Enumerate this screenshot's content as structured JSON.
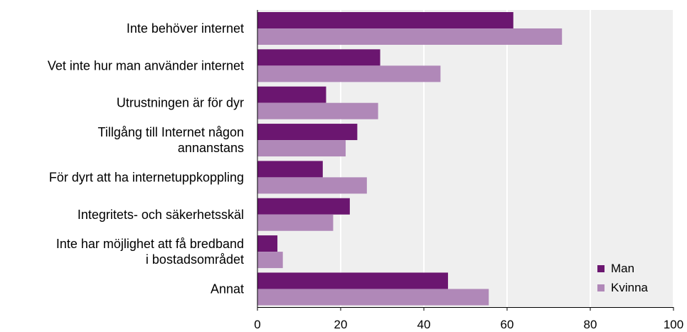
{
  "chart_data": {
    "type": "bar",
    "orientation": "horizontal",
    "categories": [
      [
        "Inte behöver internet"
      ],
      [
        "Vet inte hur man använder internet"
      ],
      [
        "Utrustningen är för dyr"
      ],
      [
        "Tillgång till Internet någon",
        "annanstans"
      ],
      [
        "För dyrt att ha internetuppkoppling"
      ],
      [
        "Integritets- och säkerhetsskäl"
      ],
      [
        "Inte har möjlighet att få bredband",
        "i bostadsområdet"
      ],
      [
        "Annat"
      ]
    ],
    "series": [
      {
        "name": "Man",
        "color": "#6b1670",
        "values": [
          61.5,
          29.5,
          16.5,
          24,
          15.7,
          22.2,
          4.8,
          45.8
        ]
      },
      {
        "name": "Kvinna",
        "color": "#b088b8",
        "values": [
          73.2,
          44,
          29,
          21.2,
          26.3,
          18.2,
          6.1,
          55.6
        ]
      }
    ],
    "xlim": [
      0,
      100
    ],
    "xticks": [
      "0",
      "20",
      "40",
      "60",
      "80",
      "100"
    ],
    "grid": true,
    "legend_position": "bottom-right",
    "plot_background": "#efefef"
  }
}
